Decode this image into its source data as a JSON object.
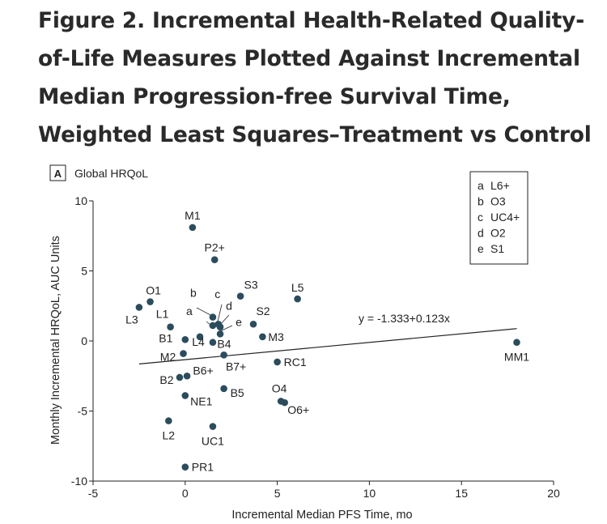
{
  "figure": {
    "title_lines": [
      "Figure 2.  Incremental Health-Related Quality-",
      "of-Life Measures Plotted Against Incremental",
      "Median Progression-free Survival Time,",
      "Weighted Least Squares–Treatment vs Control"
    ]
  },
  "chart_data": {
    "type": "scatter",
    "panel_letter": "A",
    "panel_title": "Global HRQoL",
    "xlabel": "Incremental Median PFS Time, mo",
    "ylabel": "Monthly Incremental HRQoL, AUC Units",
    "xlim": [
      -5,
      20
    ],
    "ylim": [
      -10,
      10
    ],
    "xticks": [
      -5,
      0,
      5,
      10,
      15,
      20
    ],
    "yticks": [
      -10,
      -5,
      0,
      5,
      10
    ],
    "grid": false,
    "regression": {
      "label": "y = -1.333+0.123x",
      "intercept": -1.333,
      "slope": 0.123,
      "x_range": [
        -2.5,
        18
      ]
    },
    "legend": {
      "placement": "top-right",
      "entries": [
        {
          "key": "a",
          "name": "L6+"
        },
        {
          "key": "b",
          "name": "O3"
        },
        {
          "key": "c",
          "name": "UC4+"
        },
        {
          "key": "d",
          "name": "O2"
        },
        {
          "key": "e",
          "name": "S1"
        }
      ]
    },
    "points": [
      {
        "label": "M1",
        "x": 0.4,
        "y": 8.1
      },
      {
        "label": "P2+",
        "x": 1.6,
        "y": 5.8
      },
      {
        "label": "O1",
        "x": -1.9,
        "y": 2.8
      },
      {
        "label": "L3",
        "x": -2.5,
        "y": 2.4
      },
      {
        "label": "L1",
        "x": -0.8,
        "y": 1.0
      },
      {
        "label": "S3",
        "x": 3.0,
        "y": 3.2
      },
      {
        "label": "L5",
        "x": 6.1,
        "y": 3.0
      },
      {
        "label": "S2",
        "x": 3.7,
        "y": 1.2
      },
      {
        "label": "M3",
        "x": 4.2,
        "y": 0.3
      },
      {
        "label": "a",
        "x": 1.5,
        "y": 1.1
      },
      {
        "label": "b",
        "x": 1.5,
        "y": 1.7
      },
      {
        "label": "c",
        "x": 1.8,
        "y": 1.2
      },
      {
        "label": "d",
        "x": 1.9,
        "y": 1.0
      },
      {
        "label": "e",
        "x": 1.9,
        "y": 0.5
      },
      {
        "label": "B1",
        "x": 0.0,
        "y": 0.1
      },
      {
        "label": "L4",
        "x": 0.8,
        "y": 0.3
      },
      {
        "label": "B4",
        "x": 1.5,
        "y": -0.1
      },
      {
        "label": "M2",
        "x": -0.1,
        "y": -0.9
      },
      {
        "label": "B7+",
        "x": 2.1,
        "y": -1.0
      },
      {
        "label": "RC1",
        "x": 5.0,
        "y": -1.5
      },
      {
        "label": "B6+",
        "x": 0.1,
        "y": -2.5
      },
      {
        "label": "B2",
        "x": -0.3,
        "y": -2.6
      },
      {
        "label": "B5",
        "x": 2.1,
        "y": -3.4
      },
      {
        "label": "NE1",
        "x": 0.0,
        "y": -3.9
      },
      {
        "label": "O4",
        "x": 5.2,
        "y": -4.3
      },
      {
        "label": "O6+",
        "x": 5.4,
        "y": -4.4
      },
      {
        "label": "L2",
        "x": -0.9,
        "y": -5.7
      },
      {
        "label": "UC1",
        "x": 1.5,
        "y": -6.1
      },
      {
        "label": "PR1",
        "x": 0.0,
        "y": -9.0
      },
      {
        "label": "MM1",
        "x": 18.0,
        "y": -0.1
      }
    ]
  },
  "colors": {
    "marker": "#2b4c5c",
    "axis": "#222222",
    "text": "#222222"
  }
}
